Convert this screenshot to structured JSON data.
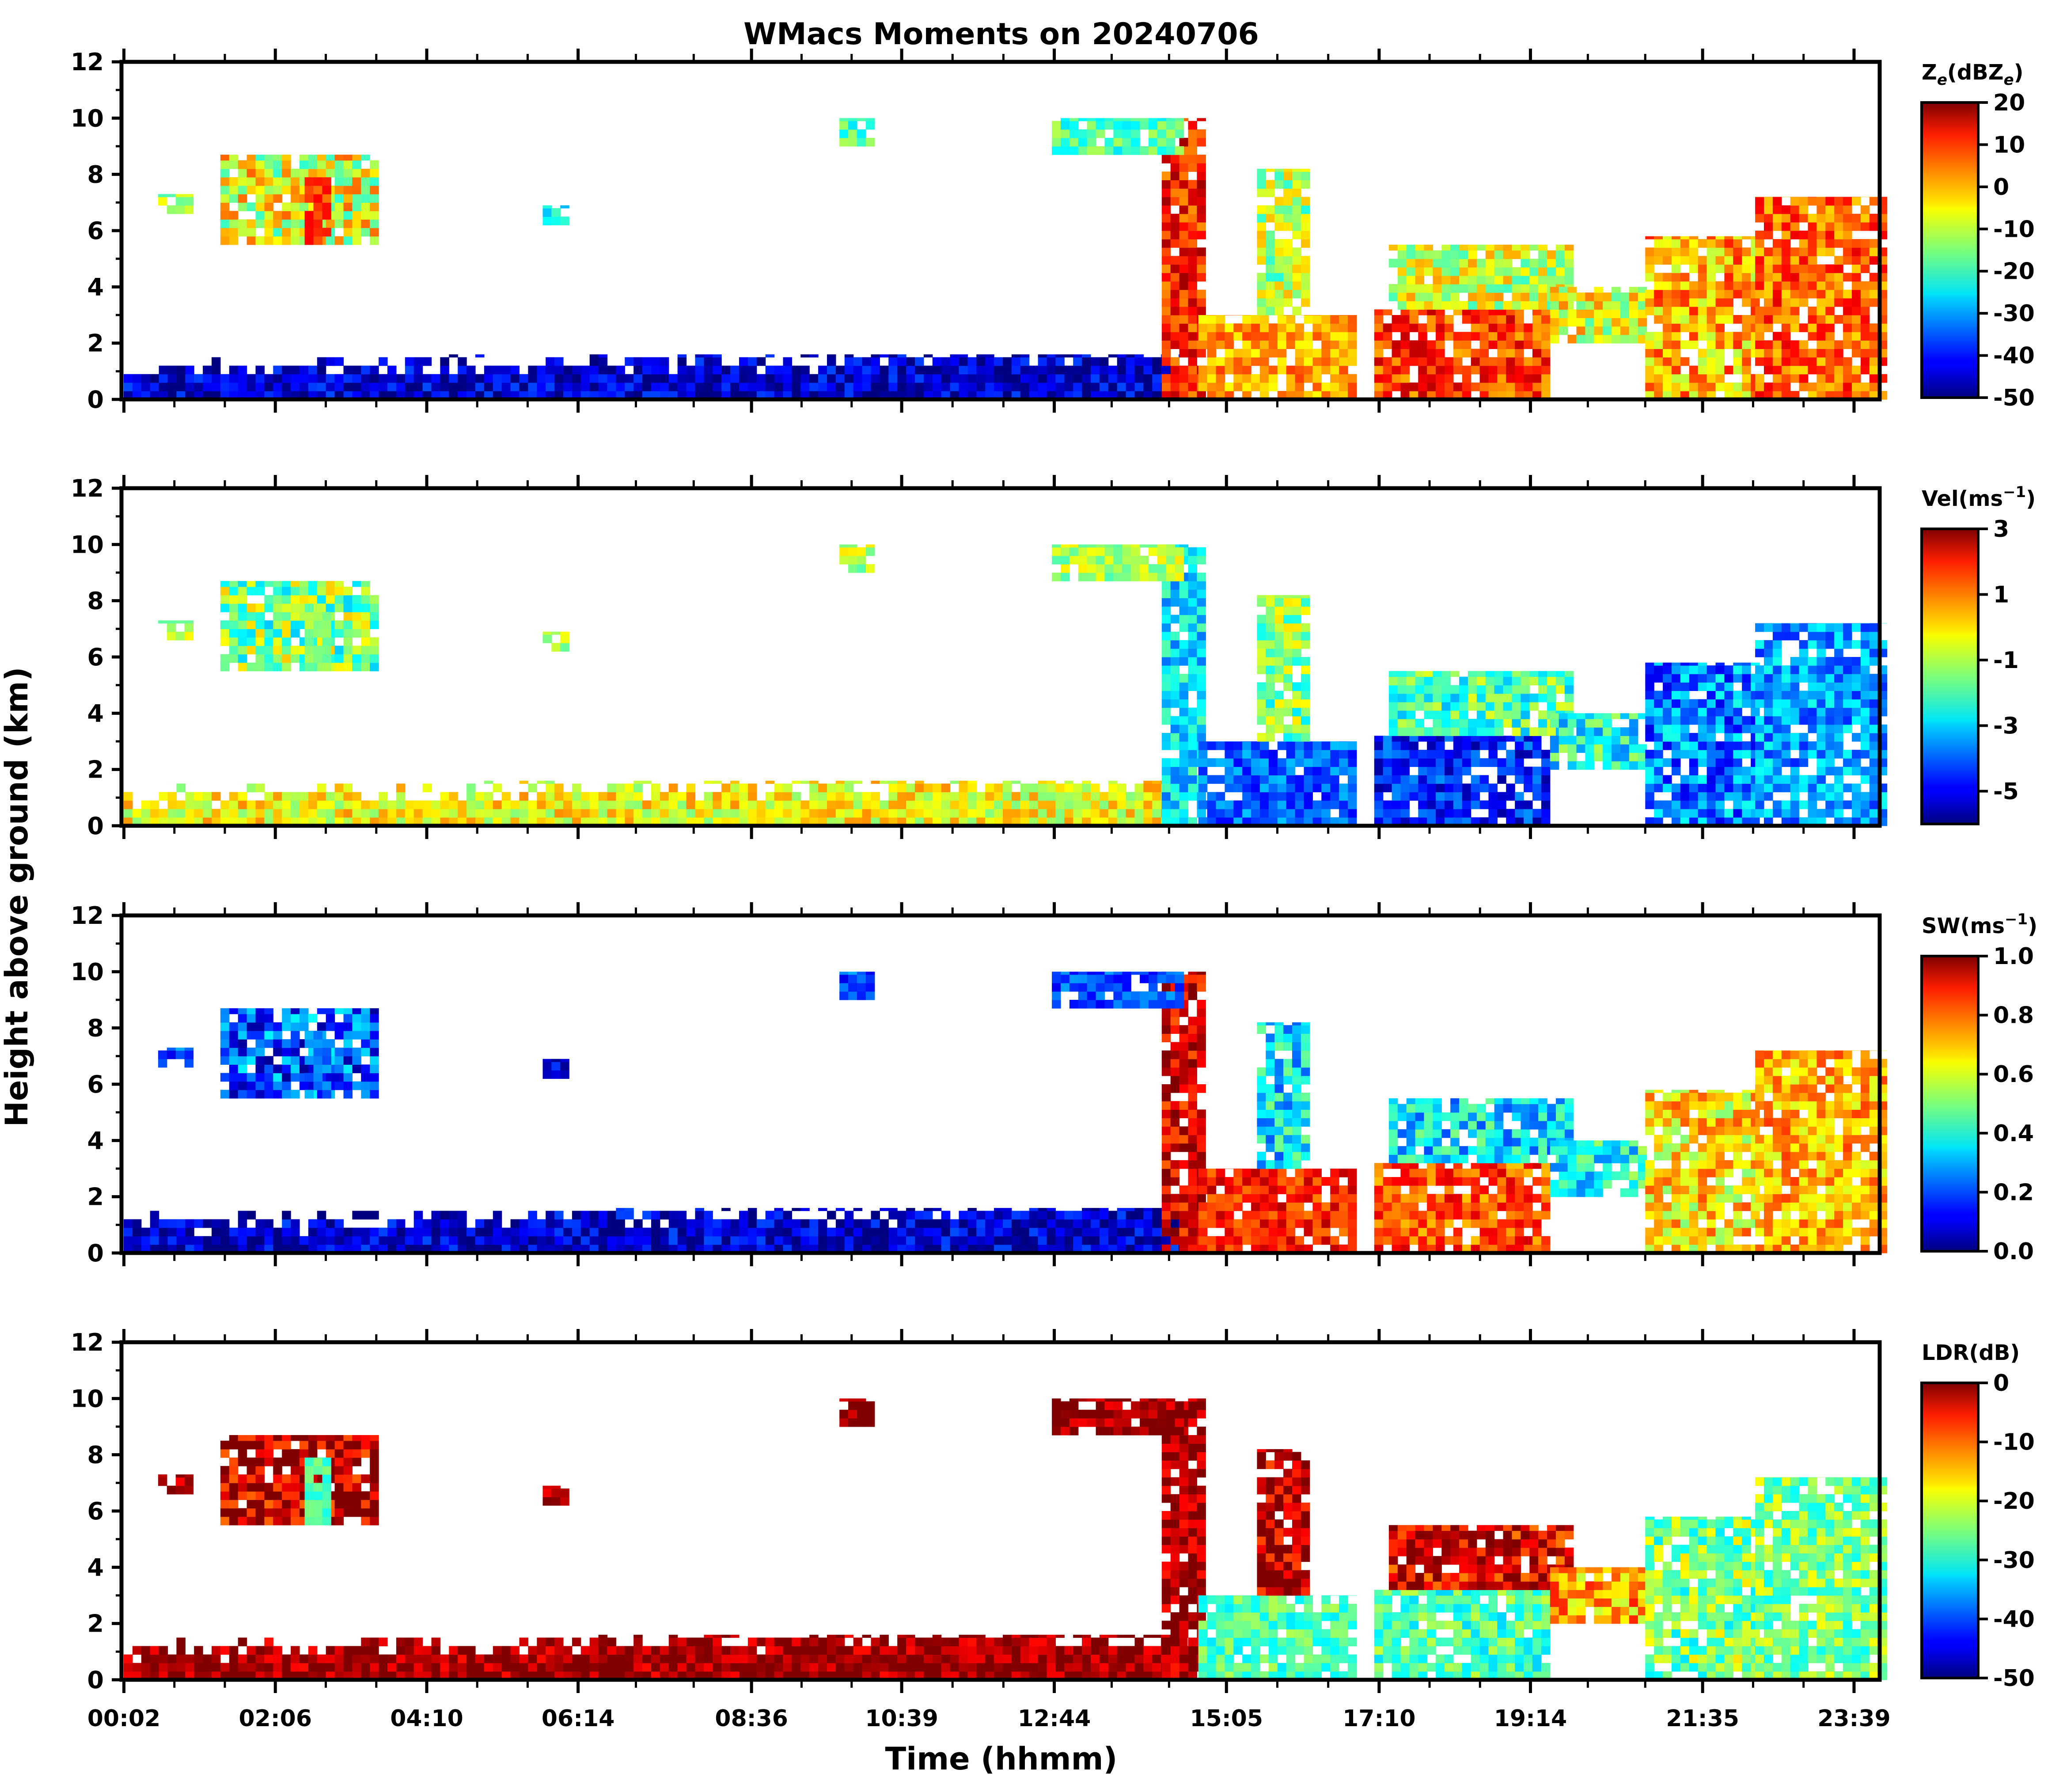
{
  "title": "WMacs Moments on 20240706",
  "xlabel": "Time (hhmm)",
  "ylabel": "Height above ground (km)",
  "chart_data": {
    "type": "heatmap",
    "title": "WMacs Moments on 20240706",
    "xlabel": "Time (hhmm)",
    "ylabel": "Height above ground (km)",
    "x_range_hours": [
      0.0,
      24.0
    ],
    "ylim": [
      0,
      12
    ],
    "ytick_labels": [
      "0",
      "2",
      "4",
      "6",
      "8",
      "10",
      "12"
    ],
    "ytick_values": [
      0,
      2,
      4,
      6,
      8,
      10,
      12
    ],
    "xtick_labels": [
      "00:02",
      "02:06",
      "04:10",
      "06:14",
      "08:36",
      "10:39",
      "12:44",
      "15:05",
      "17:10",
      "19:14",
      "21:35",
      "23:39"
    ],
    "xtick_hours": [
      0.033,
      2.1,
      4.167,
      6.233,
      8.6,
      10.65,
      12.733,
      15.083,
      17.167,
      19.233,
      21.583,
      23.65
    ],
    "panels": [
      {
        "variable": "Ze",
        "colorbar_label": "Z_e(dBZ_e)",
        "colorbar_label_main": "Z",
        "colorbar_label_sub": "e",
        "colorbar_label_mid": "(dBZ",
        "colorbar_label_sub2": "e",
        "colorbar_label_end": ")",
        "vmin": -50,
        "vmax": 20,
        "colorbar_ticks": [
          20,
          10,
          0,
          -10,
          -20,
          -30,
          -40,
          -50
        ],
        "colorbar_tick_labels": [
          "20",
          "10",
          "0",
          "-10",
          "-20",
          "-30",
          "-40",
          "-50"
        ]
      },
      {
        "variable": "Vel",
        "colorbar_label": "Vel(ms^-1)",
        "colorbar_label_main": "Vel(ms",
        "colorbar_label_sup": "−1",
        "colorbar_label_end": ")",
        "vmin": -6,
        "vmax": 3,
        "colorbar_ticks": [
          3,
          1,
          -1,
          -3,
          -5
        ],
        "colorbar_tick_labels": [
          "3",
          "1",
          "-1",
          "-3",
          "-5"
        ]
      },
      {
        "variable": "SW",
        "colorbar_label": "SW(ms^-1)",
        "colorbar_label_main": "SW(ms",
        "colorbar_label_sup": "−1",
        "colorbar_label_end": ")",
        "vmin": 0.0,
        "vmax": 1.0,
        "colorbar_ticks": [
          1.0,
          0.8,
          0.6,
          0.4,
          0.2,
          0.0
        ],
        "colorbar_tick_labels": [
          "1.0",
          "0.8",
          "0.6",
          "0.4",
          "0.2",
          "0.0"
        ]
      },
      {
        "variable": "LDR",
        "colorbar_label": "LDR(dB)",
        "colorbar_label_main": "LDR(dB)",
        "vmin": -50,
        "vmax": 0,
        "colorbar_ticks": [
          0,
          -10,
          -20,
          -30,
          -40,
          -50
        ],
        "colorbar_tick_labels": [
          "0",
          "-10",
          "-20",
          "-30",
          "-40",
          "-50"
        ]
      }
    ]
  }
}
